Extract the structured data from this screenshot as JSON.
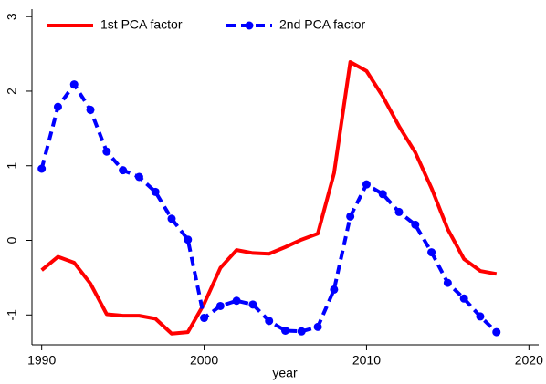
{
  "chart_data": {
    "type": "line",
    "x_label": "year",
    "x": [
      1990,
      1991,
      1992,
      1993,
      1994,
      1995,
      1996,
      1997,
      1998,
      1999,
      2000,
      2001,
      2002,
      2003,
      2004,
      2005,
      2006,
      2007,
      2008,
      2009,
      2010,
      2011,
      2012,
      2013,
      2014,
      2015,
      2016,
      2017,
      2018
    ],
    "series": [
      {
        "name": "1st PCA factor",
        "color": "#ff0000",
        "style": "solid",
        "marker": false,
        "values": [
          -0.4,
          -0.22,
          -0.3,
          -0.58,
          -0.99,
          -1.01,
          -1.01,
          -1.05,
          -1.25,
          -1.23,
          -0.85,
          -0.37,
          -0.13,
          -0.17,
          -0.18,
          -0.09,
          0.01,
          0.09,
          0.9,
          2.39,
          2.27,
          1.93,
          1.53,
          1.18,
          0.7,
          0.15,
          -0.25,
          -0.41,
          -0.45
        ]
      },
      {
        "name": "2nd PCA factor",
        "color": "#0000ff",
        "style": "dashed",
        "marker": true,
        "values": [
          0.96,
          1.79,
          2.09,
          1.75,
          1.19,
          0.94,
          0.85,
          0.65,
          0.29,
          0.01,
          -1.04,
          -0.88,
          -0.81,
          -0.86,
          -1.08,
          -1.21,
          -1.22,
          -1.16,
          -0.66,
          0.32,
          0.75,
          0.62,
          0.38,
          0.21,
          -0.16,
          -0.57,
          -0.78,
          -1.02,
          -1.23
        ]
      }
    ],
    "xlim": [
      1989.4,
      2020.6
    ],
    "xticks": [
      1990,
      2000,
      2010,
      2020
    ],
    "ylim": [
      -1.4,
      3.1
    ],
    "yticks": [
      -1,
      0,
      1,
      2,
      3
    ]
  }
}
